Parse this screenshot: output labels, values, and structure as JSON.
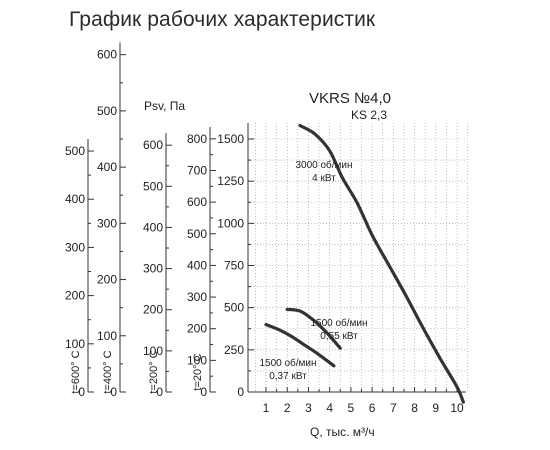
{
  "page": {
    "title": "График рабочих характеристик"
  },
  "chart_data": {
    "type": "line",
    "title": "VKRS №4,0",
    "subtitle": "KS 2,3",
    "xlabel": "Q, тыс. м³/ч",
    "ylabel": "Psv, Па",
    "xlim": [
      0.5,
      10.5
    ],
    "ylim": [
      0,
      1650
    ],
    "x_ticks": [
      1,
      2,
      3,
      4,
      5,
      6,
      7,
      8,
      9,
      10
    ],
    "y_ticks": [
      0,
      250,
      500,
      750,
      1000,
      1250,
      1500
    ],
    "grid": true,
    "extra_axes": [
      {
        "label": "t=20° C",
        "scale": 0.533,
        "ticks": [
          0,
          100,
          200,
          300,
          400,
          500,
          600,
          700,
          800
        ]
      },
      {
        "label": "t=200° C",
        "scale": 0.41,
        "ticks": [
          0,
          100,
          200,
          300,
          400,
          500,
          600
        ]
      },
      {
        "label": "t=400° C",
        "scale": 0.3,
        "ticks": [
          0,
          100,
          200,
          300,
          400,
          500,
          600
        ]
      },
      {
        "label": "t=600° C",
        "scale": 0.35,
        "ticks": [
          0,
          100,
          200,
          300,
          400,
          500
        ]
      }
    ],
    "series": [
      {
        "name": "3000 об/мин",
        "power": "4 кВт",
        "x": [
          2.6,
          3.3,
          4.0,
          4.6,
          5.3,
          6.0,
          6.8,
          7.6,
          8.4,
          9.2,
          10.0,
          10.3
        ],
        "y": [
          1580,
          1530,
          1430,
          1270,
          1120,
          930,
          750,
          570,
          380,
          200,
          30,
          -60
        ]
      },
      {
        "name": "1500 об/мин",
        "power": "0,55 кВт",
        "x": [
          2.0,
          2.6,
          3.2,
          3.8,
          4.5
        ],
        "y": [
          490,
          480,
          430,
          360,
          260
        ]
      },
      {
        "name": "1500 об/мин",
        "power": "0,37 кВт",
        "x": [
          1.0,
          1.6,
          2.2,
          2.8,
          3.4,
          4.2
        ],
        "y": [
          400,
          370,
          330,
          280,
          230,
          155
        ]
      }
    ]
  }
}
